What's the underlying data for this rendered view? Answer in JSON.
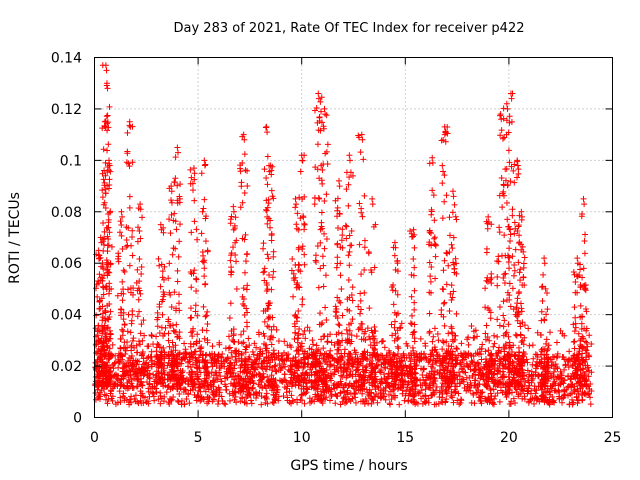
{
  "chart_data": {
    "type": "scatter",
    "title": "Day 283 of 2021, Rate Of TEC Index for receiver p422",
    "xlabel": "GPS time / hours",
    "ylabel": "ROTI / TECUs",
    "xlim": [
      0,
      25
    ],
    "ylim": [
      0,
      0.14
    ],
    "x_ticks": [
      0,
      5,
      10,
      15,
      20,
      25
    ],
    "x_tick_labels": [
      "0",
      "5",
      "10",
      "15",
      "20",
      "25"
    ],
    "y_ticks": [
      0,
      0.02,
      0.04,
      0.06,
      0.08,
      0.1,
      0.12,
      0.14
    ],
    "y_tick_labels": [
      "0",
      "0.02",
      "0.04",
      "0.06",
      "0.08",
      "0.1",
      "0.12",
      "0.14"
    ],
    "grid": true,
    "marker": "+",
    "marker_color": "#ff0000",
    "time_range_hours": [
      0,
      24
    ],
    "baseline_band": [
      0.005,
      0.025
    ],
    "peaks": [
      {
        "x": 0.2,
        "y": 0.065
      },
      {
        "x": 0.3,
        "y": 0.07
      },
      {
        "x": 0.5,
        "y": 0.115
      },
      {
        "x": 0.55,
        "y": 0.137
      },
      {
        "x": 0.6,
        "y": 0.13
      },
      {
        "x": 0.7,
        "y": 0.1
      },
      {
        "x": 1.3,
        "y": 0.08
      },
      {
        "x": 1.7,
        "y": 0.115
      },
      {
        "x": 2.2,
        "y": 0.083
      },
      {
        "x": 3.2,
        "y": 0.075
      },
      {
        "x": 3.7,
        "y": 0.09
      },
      {
        "x": 4.0,
        "y": 0.105
      },
      {
        "x": 4.8,
        "y": 0.097
      },
      {
        "x": 5.3,
        "y": 0.1
      },
      {
        "x": 6.7,
        "y": 0.082
      },
      {
        "x": 7.2,
        "y": 0.11
      },
      {
        "x": 8.3,
        "y": 0.113
      },
      {
        "x": 8.5,
        "y": 0.098
      },
      {
        "x": 9.7,
        "y": 0.085
      },
      {
        "x": 10.0,
        "y": 0.102
      },
      {
        "x": 10.8,
        "y": 0.126
      },
      {
        "x": 11.1,
        "y": 0.12
      },
      {
        "x": 11.8,
        "y": 0.092
      },
      {
        "x": 12.3,
        "y": 0.102
      },
      {
        "x": 12.9,
        "y": 0.11
      },
      {
        "x": 13.4,
        "y": 0.085
      },
      {
        "x": 14.5,
        "y": 0.068
      },
      {
        "x": 15.4,
        "y": 0.073
      },
      {
        "x": 16.3,
        "y": 0.101
      },
      {
        "x": 16.9,
        "y": 0.113
      },
      {
        "x": 17.3,
        "y": 0.088
      },
      {
        "x": 19.0,
        "y": 0.078
      },
      {
        "x": 19.6,
        "y": 0.118
      },
      {
        "x": 19.9,
        "y": 0.122
      },
      {
        "x": 20.1,
        "y": 0.126
      },
      {
        "x": 20.4,
        "y": 0.1
      },
      {
        "x": 20.6,
        "y": 0.08
      },
      {
        "x": 21.7,
        "y": 0.062
      },
      {
        "x": 23.3,
        "y": 0.062
      },
      {
        "x": 23.6,
        "y": 0.085
      }
    ]
  }
}
